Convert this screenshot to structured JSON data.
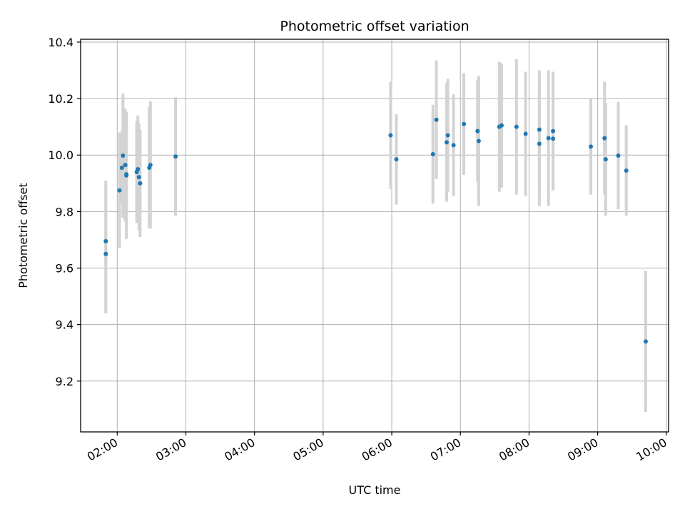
{
  "chart_data": {
    "type": "scatter",
    "title": "Photometric offset variation",
    "xlabel": "UTC time",
    "ylabel": "Photometric offset",
    "x_unit": "hh:mm",
    "xlim": [
      "01:28",
      "10:02"
    ],
    "ylim": [
      9.02,
      10.41
    ],
    "xticks": [
      "02:00",
      "03:00",
      "04:00",
      "05:00",
      "06:00",
      "07:00",
      "08:00",
      "09:00",
      "10:00"
    ],
    "yticks": [
      9.2,
      9.4,
      9.6,
      9.8,
      10.0,
      10.2,
      10.4
    ],
    "grid": true,
    "colors": {
      "points": "#1f77b4",
      "errorbars": "#d3d3d3",
      "grid": "#b0b0b0"
    },
    "series": [
      {
        "x": [
          "01:50",
          "01:50",
          "02:02",
          "02:04",
          "02:05",
          "02:07",
          "02:08",
          "02:08",
          "02:17",
          "02:18",
          "02:19",
          "02:20",
          "02:28",
          "02:29",
          "02:51",
          "05:59",
          "06:04",
          "06:36",
          "06:39",
          "06:48",
          "06:49",
          "06:54",
          "07:03",
          "07:15",
          "07:16",
          "07:34",
          "07:36",
          "07:49",
          "07:57",
          "08:09",
          "08:09",
          "08:17",
          "08:21",
          "08:21",
          "08:54",
          "09:06",
          "09:07",
          "09:18",
          "09:25",
          "09:42"
        ],
        "y": [
          9.65,
          9.695,
          9.875,
          9.955,
          9.998,
          9.965,
          9.928,
          9.932,
          9.94,
          9.95,
          9.922,
          9.9,
          9.955,
          9.965,
          9.995,
          10.07,
          9.985,
          10.003,
          10.125,
          10.045,
          10.07,
          10.035,
          10.11,
          10.085,
          10.05,
          10.1,
          10.105,
          10.1,
          10.075,
          10.04,
          10.09,
          10.06,
          10.085,
          10.058,
          10.03,
          10.06,
          9.985,
          9.998,
          9.945,
          9.34
        ],
        "yerr": [
          0.21,
          0.215,
          0.205,
          0.13,
          0.22,
          0.2,
          0.225,
          0.22,
          0.18,
          0.19,
          0.19,
          0.19,
          0.215,
          0.225,
          0.21,
          0.19,
          0.16,
          0.175,
          0.21,
          0.21,
          0.2,
          0.18,
          0.18,
          0.18,
          0.23,
          0.23,
          0.22,
          0.24,
          0.22,
          0.22,
          0.21,
          0.24,
          0.21,
          0.18,
          0.17,
          0.2,
          0.2,
          0.19,
          0.16,
          0.25
        ]
      }
    ]
  }
}
